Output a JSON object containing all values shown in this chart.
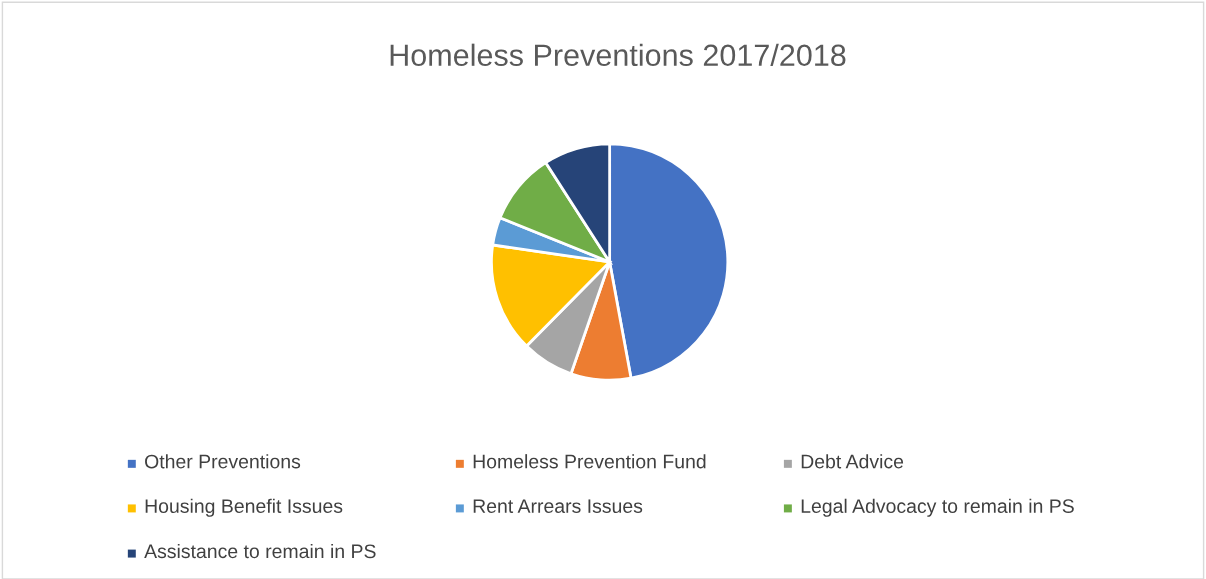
{
  "chart_data": {
    "type": "pie",
    "title": "Homeless Preventions 2017/2018",
    "categories": [
      "Other Preventions",
      "Homeless Prevention Fund",
      "Debt Advice",
      "Housing Benefit Issues",
      "Rent Arrears Issues",
      "Legal Advocacy to remain in PS",
      "Assistance to remain in PS"
    ],
    "values": [
      47.1,
      8.2,
      7.1,
      14.9,
      3.8,
      9.8,
      9.1
    ],
    "colors": [
      "#4472c4",
      "#ed7d31",
      "#a5a5a5",
      "#ffc000",
      "#5b9bd5",
      "#70ad47",
      "#264478"
    ],
    "legend": "bottom"
  }
}
